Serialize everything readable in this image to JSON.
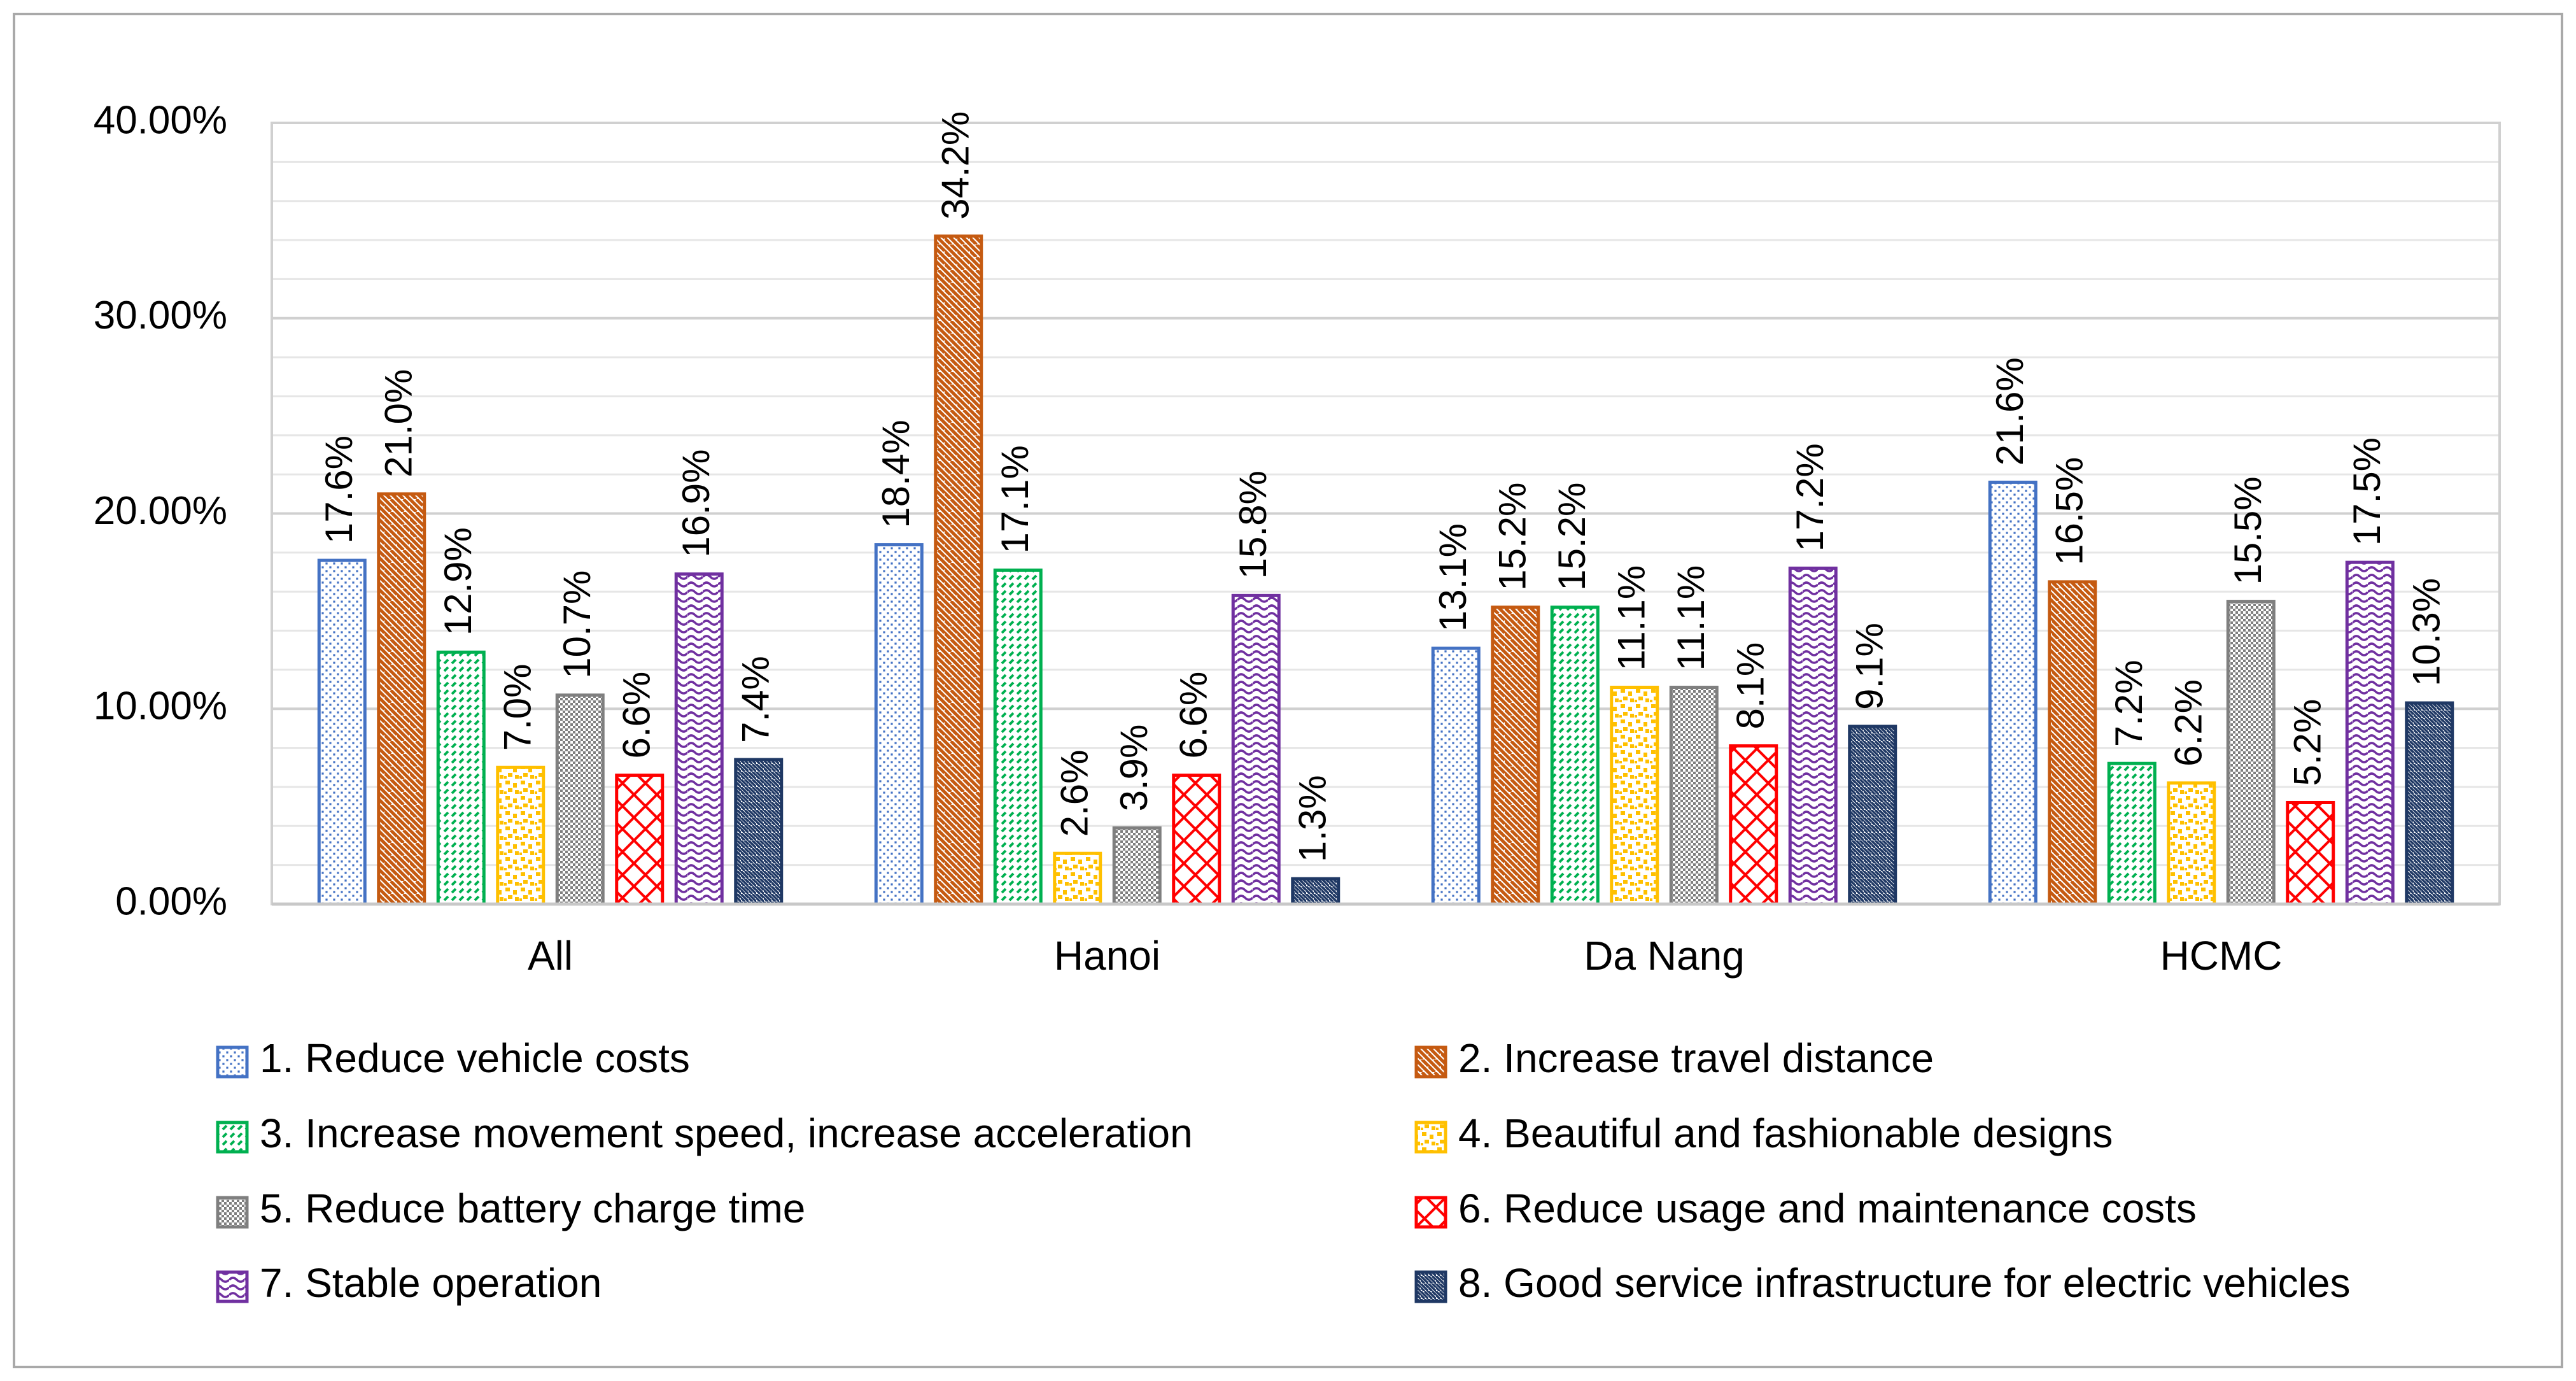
{
  "chart_data": {
    "type": "bar",
    "title": "",
    "xlabel": "",
    "ylabel": "",
    "ylim": [
      0,
      40
    ],
    "yticks": [
      0,
      10,
      20,
      30,
      40
    ],
    "ytick_labels": [
      "0.00%",
      "10.00%",
      "20.00%",
      "30.00%",
      "40.00%"
    ],
    "grid": true,
    "legend_position": "bottom",
    "categories": [
      "All",
      "Hanoi",
      "Da Nang",
      "HCMC"
    ],
    "series": [
      {
        "name": "1. Reduce vehicle costs",
        "color": "#4472c4",
        "pattern": "dots",
        "values": [
          17.6,
          18.4,
          13.1,
          21.6
        ],
        "labels": [
          "17.6%",
          "18.4%",
          "13.1%",
          "21.6%"
        ]
      },
      {
        "name": "2. Increase travel distance",
        "color": "#c55a11",
        "pattern": "wide-downward-diagonal",
        "values": [
          21.0,
          34.2,
          15.2,
          16.5
        ],
        "labels": [
          "21.0%",
          "34.2%",
          "15.2%",
          "16.5%"
        ]
      },
      {
        "name": "3. Increase movement speed, increase acceleration",
        "color": "#00b050",
        "pattern": "dashed-upward-diagonal",
        "values": [
          12.9,
          17.1,
          15.2,
          7.2
        ],
        "labels": [
          "12.9%",
          "17.1%",
          "15.2%",
          "7.2%"
        ]
      },
      {
        "name": "4. Beautiful and fashionable designs",
        "color": "#ffc000",
        "pattern": "large-confetti",
        "values": [
          7.0,
          2.6,
          11.1,
          6.2
        ],
        "labels": [
          "7.0%",
          "2.6%",
          "11.1%",
          "6.2%"
        ]
      },
      {
        "name": "5. Reduce battery charge time",
        "color": "#7f7f7f",
        "pattern": "small-checker",
        "values": [
          10.7,
          3.9,
          11.1,
          15.5
        ],
        "labels": [
          "10.7%",
          "3.9%",
          "11.1%",
          "15.5%"
        ]
      },
      {
        "name": "6. Reduce usage and maintenance costs",
        "color": "#ff0000",
        "pattern": "divot",
        "values": [
          6.6,
          6.6,
          8.1,
          5.2
        ],
        "labels": [
          "6.6%",
          "6.6%",
          "8.1%",
          "5.2%"
        ]
      },
      {
        "name": "7. Stable operation",
        "color": "#7030a0",
        "pattern": "wave",
        "values": [
          16.9,
          15.8,
          17.2,
          17.5
        ],
        "labels": [
          "16.9%",
          "15.8%",
          "17.2%",
          "17.5%"
        ]
      },
      {
        "name": "8. Good service infrastructure for electric vehicles",
        "color": "#1f3864",
        "pattern": "dark-downward-diagonal",
        "values": [
          7.4,
          1.3,
          9.1,
          10.3
        ],
        "labels": [
          "7.4%",
          "1.3%",
          "9.1%",
          "10.3%"
        ]
      }
    ]
  }
}
